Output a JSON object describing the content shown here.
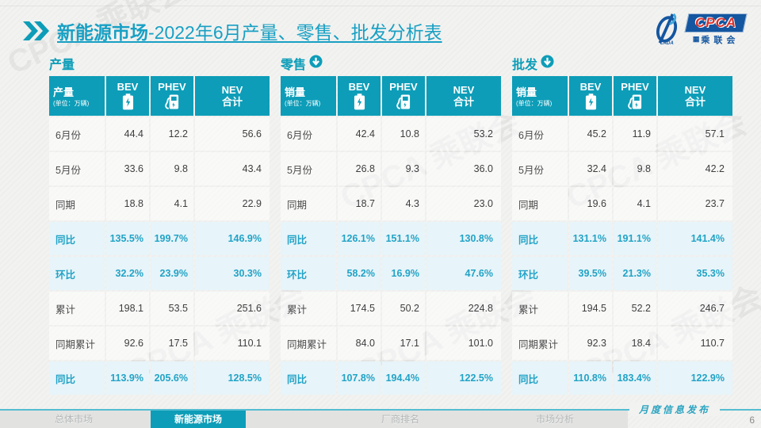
{
  "title": {
    "highlight": "新能源市场",
    "rest": "-2022年6月产量、零售、批发分析表"
  },
  "logo": {
    "badge": "CPCA",
    "subtitle": "乘联会",
    "swoosh_caption": "CADA"
  },
  "col_headers": {
    "bev": "BEV",
    "phev": "PHEV",
    "nev_line1": "NEV",
    "nev_line2": "合计"
  },
  "tables": [
    {
      "section": "产量",
      "trend_arrow": false,
      "corner_label": "产量",
      "unit": "(单位：万辆)",
      "rows": [
        {
          "label": "6月份",
          "bev": "44.4",
          "phev": "12.2",
          "nev": "56.6",
          "highlight": false
        },
        {
          "label": "5月份",
          "bev": "33.6",
          "phev": "9.8",
          "nev": "43.4",
          "highlight": false
        },
        {
          "label": "同期",
          "bev": "18.8",
          "phev": "4.1",
          "nev": "22.9",
          "highlight": false
        },
        {
          "label": "同比",
          "bev": "135.5%",
          "phev": "199.7%",
          "nev": "146.9%",
          "highlight": true
        },
        {
          "label": "环比",
          "bev": "32.2%",
          "phev": "23.9%",
          "nev": "30.3%",
          "highlight": true
        },
        {
          "label": "累计",
          "bev": "198.1",
          "phev": "53.5",
          "nev": "251.6",
          "highlight": false
        },
        {
          "label": "同期累计",
          "bev": "92.6",
          "phev": "17.5",
          "nev": "110.1",
          "highlight": false
        },
        {
          "label": "同比",
          "bev": "113.9%",
          "phev": "205.6%",
          "nev": "128.5%",
          "highlight": true
        }
      ]
    },
    {
      "section": "零售",
      "trend_arrow": true,
      "corner_label": "销量",
      "unit": "(单位：万辆)",
      "rows": [
        {
          "label": "6月份",
          "bev": "42.4",
          "phev": "10.8",
          "nev": "53.2",
          "highlight": false
        },
        {
          "label": "5月份",
          "bev": "26.8",
          "phev": "9.3",
          "nev": "36.0",
          "highlight": false
        },
        {
          "label": "同期",
          "bev": "18.7",
          "phev": "4.3",
          "nev": "23.0",
          "highlight": false
        },
        {
          "label": "同比",
          "bev": "126.1%",
          "phev": "151.1%",
          "nev": "130.8%",
          "highlight": true
        },
        {
          "label": "环比",
          "bev": "58.2%",
          "phev": "16.9%",
          "nev": "47.6%",
          "highlight": true
        },
        {
          "label": "累计",
          "bev": "174.5",
          "phev": "50.2",
          "nev": "224.8",
          "highlight": false
        },
        {
          "label": "同期累计",
          "bev": "84.0",
          "phev": "17.1",
          "nev": "101.0",
          "highlight": false
        },
        {
          "label": "同比",
          "bev": "107.8%",
          "phev": "194.4%",
          "nev": "122.5%",
          "highlight": true
        }
      ]
    },
    {
      "section": "批发",
      "trend_arrow": true,
      "corner_label": "销量",
      "unit": "(单位：万辆)",
      "rows": [
        {
          "label": "6月份",
          "bev": "45.2",
          "phev": "11.9",
          "nev": "57.1",
          "highlight": false
        },
        {
          "label": "5月份",
          "bev": "32.4",
          "phev": "9.8",
          "nev": "42.2",
          "highlight": false
        },
        {
          "label": "同期",
          "bev": "19.6",
          "phev": "4.1",
          "nev": "23.7",
          "highlight": false
        },
        {
          "label": "同比",
          "bev": "131.1%",
          "phev": "191.1%",
          "nev": "141.4%",
          "highlight": true
        },
        {
          "label": "环比",
          "bev": "39.5%",
          "phev": "21.3%",
          "nev": "35.3%",
          "highlight": true
        },
        {
          "label": "累计",
          "bev": "194.5",
          "phev": "52.2",
          "nev": "246.7",
          "highlight": false
        },
        {
          "label": "同期累计",
          "bev": "92.3",
          "phev": "18.4",
          "nev": "110.7",
          "highlight": false
        },
        {
          "label": "同比",
          "bev": "110.8%",
          "phev": "183.4%",
          "nev": "122.9%",
          "highlight": true
        }
      ]
    }
  ],
  "footer": {
    "tabs": [
      {
        "label": "总体市场",
        "active": false
      },
      {
        "label": "新能源市场",
        "active": true
      },
      {
        "label": "厂商排名",
        "active": false
      },
      {
        "label": "市场分析",
        "active": false
      }
    ],
    "publish_label": "月度信息发布",
    "page_number": "6"
  },
  "watermark": "CPCA 乘联会",
  "colors": {
    "teal": "#0d9db8",
    "teal_text": "#22a3c6",
    "highlight_row_bg": "#e7f4f9",
    "logo_blue": "#1456a0",
    "logo_red": "#d8302c"
  }
}
